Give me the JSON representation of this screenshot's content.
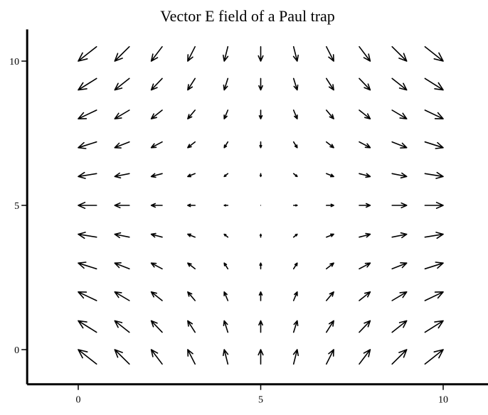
{
  "chart_data": {
    "type": "quiver",
    "title": "Vector E field of a Paul trap",
    "xlabel": "",
    "ylabel": "",
    "xlim": [
      -1.4,
      11.3
    ],
    "ylim": [
      -1.2,
      11.1
    ],
    "x_ticks": [
      0,
      5,
      10
    ],
    "y_ticks": [
      0,
      5,
      10
    ],
    "grid": false,
    "field": {
      "description_formula": "E = (x - 5, 5 - y)",
      "center": [
        5,
        5
      ],
      "x_values": [
        0,
        1,
        2,
        3,
        4,
        5,
        6,
        7,
        8,
        9,
        10
      ],
      "y_values": [
        0,
        1,
        2,
        3,
        4,
        5,
        6,
        7,
        8,
        9,
        10
      ]
    },
    "arrow_color": "#000000"
  }
}
